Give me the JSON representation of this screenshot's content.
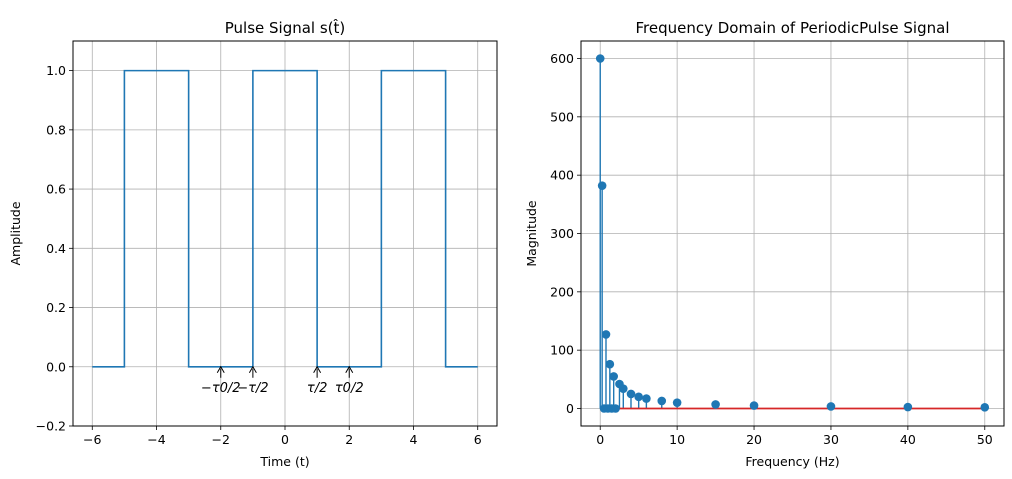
{
  "chart_data": [
    {
      "type": "line",
      "title": "Pulse Signal s(t̂)",
      "xlabel": "Time (t)",
      "ylabel": "Amplitude",
      "xlim": [
        -6.6,
        6.6
      ],
      "ylim": [
        -0.2,
        1.1
      ],
      "xticks": [
        -6,
        -4,
        -2,
        0,
        2,
        4,
        6
      ],
      "xtick_labels": [
        "−6",
        "−4",
        "−2",
        "0",
        "2",
        "4",
        "6"
      ],
      "yticks": [
        -0.2,
        0.0,
        0.2,
        0.4,
        0.6,
        0.8,
        1.0
      ],
      "ytick_labels": [
        "−0.2",
        "0.0",
        "0.2",
        "0.4",
        "0.6",
        "0.8",
        "1.0"
      ],
      "grid": true,
      "color": "#1f77b4",
      "series": [
        {
          "x": [
            -6,
            -5,
            -5,
            -3,
            -3,
            -1,
            -1,
            1,
            1,
            3,
            3,
            5,
            5,
            6
          ],
          "y": [
            0,
            0,
            1,
            1,
            0,
            0,
            1,
            1,
            0,
            0,
            1,
            1,
            0,
            0
          ]
        }
      ],
      "annotations": [
        {
          "text": "−τ0/2",
          "x": -2,
          "y": 0
        },
        {
          "text": "−τ/2",
          "x": -1,
          "y": 0
        },
        {
          "text": "τ/2",
          "x": 1,
          "y": 0
        },
        {
          "text": "τ0/2",
          "x": 2,
          "y": 0
        }
      ]
    },
    {
      "type": "stem",
      "title": "Frequency Domain of PeriodicPulse Signal",
      "xlabel": "Frequency (Hz)",
      "ylabel": "Magnitude",
      "xlim": [
        -2.5,
        52.5
      ],
      "ylim": [
        -30,
        630
      ],
      "xticks": [
        0,
        10,
        20,
        30,
        40,
        50
      ],
      "xtick_labels": [
        "0",
        "10",
        "20",
        "30",
        "40",
        "50"
      ],
      "yticks": [
        0,
        100,
        200,
        300,
        400,
        500,
        600
      ],
      "ytick_labels": [
        "0",
        "100",
        "200",
        "300",
        "400",
        "500",
        "600"
      ],
      "grid": true,
      "color": "#1f77b4",
      "baseline_color": "#d62728",
      "series": [
        {
          "x": [
            0,
            0.25,
            0.5,
            0.75,
            1,
            1.25,
            1.5,
            1.75,
            2,
            2.5,
            3,
            4,
            5,
            6,
            8,
            10,
            15,
            20,
            30,
            40,
            50
          ],
          "y": [
            600,
            382,
            0,
            127,
            0,
            76,
            0,
            55,
            0,
            42,
            34,
            25,
            20,
            17,
            13,
            10,
            7,
            5,
            3.5,
            2.5,
            2
          ]
        }
      ]
    }
  ]
}
